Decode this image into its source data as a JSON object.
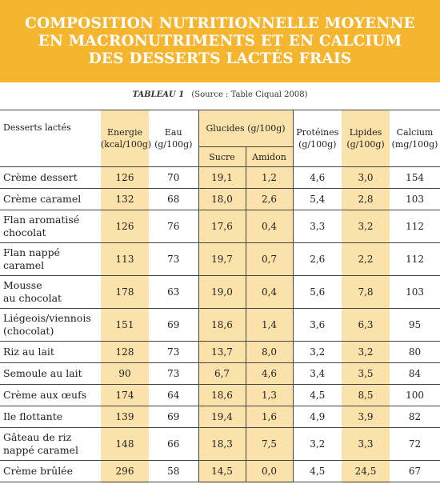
{
  "banner": {
    "title": "COMPOSITION NUTRITIONNELLE MOYENNE\nEN MACRONUTRIMENTS ET EN CALCIUM\nDES DESSERTS LACTÉS FRAIS"
  },
  "caption": {
    "tag": "TABLEAU 1",
    "source": "(Source : Table Ciqual 2008)"
  },
  "table": {
    "header": {
      "name": "Desserts lactés",
      "energie": "Energie\n(kcal/100g)",
      "eau": "Eau\n(g/100g)",
      "glucides": "Glucides (g/100g)",
      "sucre": "Sucre",
      "amidon": "Amidon",
      "proteines": "Protéines\n(g/100g)",
      "lipides": "Lipides\n(g/100g)",
      "calcium": "Calcium\n(mg/100g)"
    },
    "rows": [
      {
        "name": "Crème dessert",
        "energie": "126",
        "eau": "70",
        "sucre": "19,1",
        "amidon": "1,2",
        "proteines": "4,6",
        "lipides": "3,0",
        "calcium": "154"
      },
      {
        "name": "Crème caramel",
        "energie": "132",
        "eau": "68",
        "sucre": "18,0",
        "amidon": "2,6",
        "proteines": "5,4",
        "lipides": "2,8",
        "calcium": "103"
      },
      {
        "name": "Flan aromatisé\nchocolat",
        "energie": "126",
        "eau": "76",
        "sucre": "17,6",
        "amidon": "0,4",
        "proteines": "3,3",
        "lipides": "3,2",
        "calcium": "112"
      },
      {
        "name": "Flan nappé\ncaramel",
        "energie": "113",
        "eau": "73",
        "sucre": "19,7",
        "amidon": "0,7",
        "proteines": "2,6",
        "lipides": "2,2",
        "calcium": "112"
      },
      {
        "name": "Mousse\nau chocolat",
        "energie": "178",
        "eau": "63",
        "sucre": "19,0",
        "amidon": "0,4",
        "proteines": "5,6",
        "lipides": "7,8",
        "calcium": "103"
      },
      {
        "name": "Liégeois/viennois\n(chocolat)",
        "energie": "151",
        "eau": "69",
        "sucre": "18,6",
        "amidon": "1,4",
        "proteines": "3,6",
        "lipides": "6,3",
        "calcium": "95"
      },
      {
        "name": "Riz au lait",
        "energie": "128",
        "eau": "73",
        "sucre": "13,7",
        "amidon": "8,0",
        "proteines": "3,2",
        "lipides": "3,2",
        "calcium": "80"
      },
      {
        "name": "Semoule au lait",
        "energie": "90",
        "eau": "73",
        "sucre": "6,7",
        "amidon": "4,6",
        "proteines": "3,4",
        "lipides": "3,5",
        "calcium": "84"
      },
      {
        "name": "Crème aux œufs",
        "energie": "174",
        "eau": "64",
        "sucre": "18,6",
        "amidon": "1,3",
        "proteines": "4,5",
        "lipides": "8,5",
        "calcium": "100"
      },
      {
        "name": "Ile flottante",
        "energie": "139",
        "eau": "69",
        "sucre": "19,4",
        "amidon": "1,6",
        "proteines": "4,9",
        "lipides": "3,9",
        "calcium": "82"
      },
      {
        "name": "Gâteau de riz\nnappé caramel",
        "energie": "148",
        "eau": "66",
        "sucre": "18,3",
        "amidon": "7,5",
        "proteines": "3,2",
        "lipides": "3,3",
        "calcium": "72"
      },
      {
        "name": "Crème brûlée",
        "energie": "296",
        "eau": "58",
        "sucre": "14,5",
        "amidon": "0,0",
        "proteines": "4,5",
        "lipides": "24,5",
        "calcium": "67"
      }
    ]
  }
}
